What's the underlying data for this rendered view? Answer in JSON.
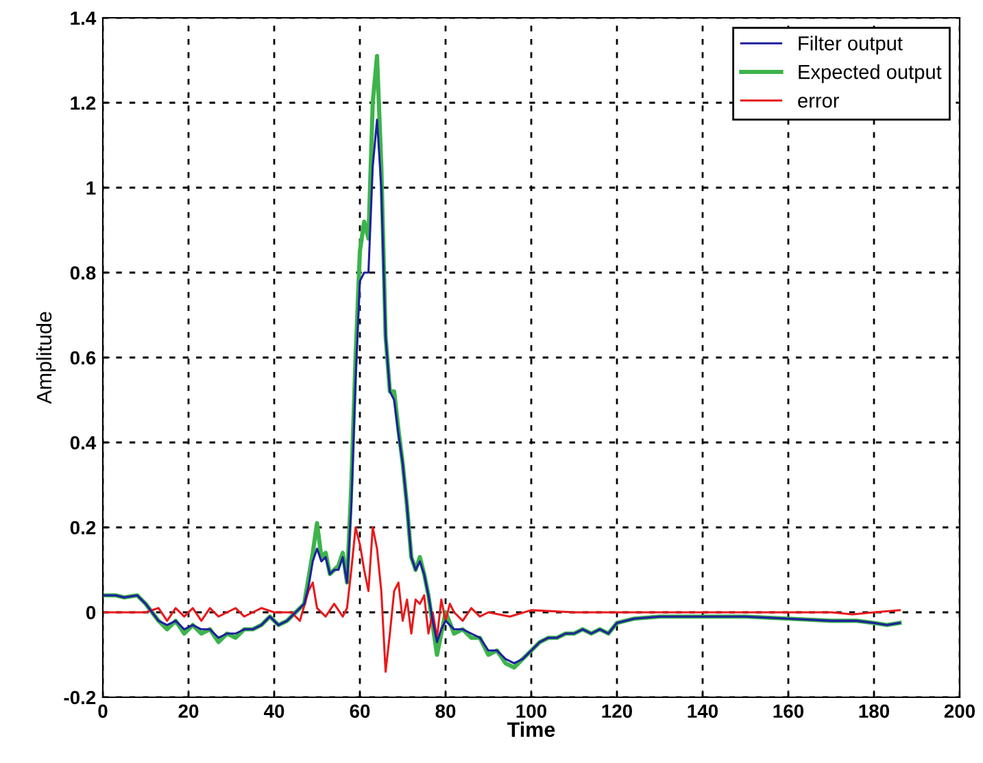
{
  "chart_data": {
    "type": "line",
    "xlabel": "Time",
    "ylabel": "Amplitude",
    "xlim": [
      0,
      200
    ],
    "ylim": [
      -0.2,
      1.4
    ],
    "xticks": [
      0,
      20,
      40,
      60,
      80,
      100,
      120,
      140,
      160,
      180,
      200
    ],
    "yticks": [
      -0.2,
      0,
      0.2,
      0.4,
      0.6,
      0.8,
      1,
      1.2,
      1.4
    ],
    "grid": true,
    "legend": "top right",
    "series": [
      {
        "name": "Filter output",
        "color": "#1f1f9e",
        "x": [
          0,
          3,
          5,
          8,
          10,
          13,
          15,
          17,
          19,
          21,
          23,
          25,
          27,
          29,
          31,
          33,
          35,
          37,
          39,
          41,
          43,
          45,
          46,
          47,
          48,
          49,
          50,
          51,
          52,
          53,
          54,
          55,
          56,
          57,
          58,
          59,
          60,
          61,
          62,
          63,
          64,
          65,
          66,
          67,
          68,
          69,
          70,
          71,
          72,
          73,
          74,
          75,
          76,
          77,
          78,
          79,
          80,
          82,
          84,
          86,
          88,
          90,
          92,
          94,
          96,
          98,
          100,
          102,
          104,
          106,
          108,
          110,
          112,
          114,
          116,
          118,
          120,
          124,
          130,
          140,
          150,
          160,
          170,
          176,
          180,
          183,
          186
        ],
        "values": [
          0.04,
          0.04,
          0.035,
          0.04,
          0.02,
          -0.02,
          -0.03,
          -0.02,
          -0.04,
          -0.03,
          -0.04,
          -0.04,
          -0.06,
          -0.05,
          -0.05,
          -0.04,
          -0.04,
          -0.03,
          -0.01,
          -0.03,
          -0.02,
          0.0,
          0.01,
          0.02,
          0.06,
          0.12,
          0.15,
          0.12,
          0.13,
          0.09,
          0.1,
          0.1,
          0.13,
          0.07,
          0.25,
          0.55,
          0.78,
          0.8,
          0.8,
          1.05,
          1.16,
          1.0,
          0.65,
          0.52,
          0.5,
          0.42,
          0.35,
          0.25,
          0.13,
          0.1,
          0.12,
          0.09,
          0.04,
          -0.02,
          -0.07,
          -0.04,
          -0.02,
          -0.04,
          -0.04,
          -0.05,
          -0.06,
          -0.09,
          -0.09,
          -0.11,
          -0.12,
          -0.11,
          -0.09,
          -0.07,
          -0.06,
          -0.06,
          -0.05,
          -0.05,
          -0.04,
          -0.05,
          -0.04,
          -0.05,
          -0.025,
          -0.015,
          -0.01,
          -0.01,
          -0.01,
          -0.015,
          -0.02,
          -0.02,
          -0.025,
          -0.03,
          -0.025
        ]
      },
      {
        "name": "Expected output",
        "color": "#3cb44b",
        "x": [
          0,
          3,
          5,
          8,
          10,
          13,
          15,
          17,
          19,
          21,
          23,
          25,
          27,
          29,
          31,
          33,
          35,
          37,
          39,
          41,
          43,
          45,
          46,
          47,
          48,
          49,
          50,
          51,
          52,
          53,
          54,
          55,
          56,
          57,
          58,
          59,
          60,
          61,
          62,
          63,
          64,
          65,
          66,
          67,
          68,
          69,
          70,
          71,
          72,
          73,
          74,
          75,
          76,
          77,
          78,
          79,
          80,
          82,
          84,
          86,
          88,
          90,
          92,
          94,
          96,
          98,
          100,
          102,
          104,
          106,
          108,
          110,
          112,
          114,
          116,
          118,
          120,
          124,
          130,
          140,
          150,
          160,
          170,
          176,
          180,
          183,
          186
        ],
        "values": [
          0.04,
          0.04,
          0.035,
          0.04,
          0.02,
          -0.02,
          -0.04,
          -0.02,
          -0.05,
          -0.03,
          -0.05,
          -0.04,
          -0.07,
          -0.05,
          -0.06,
          -0.04,
          -0.04,
          -0.03,
          -0.01,
          -0.03,
          -0.02,
          0.0,
          0.01,
          0.02,
          0.08,
          0.14,
          0.21,
          0.13,
          0.14,
          0.09,
          0.1,
          0.11,
          0.14,
          0.07,
          0.3,
          0.6,
          0.85,
          0.92,
          0.88,
          1.2,
          1.31,
          1.05,
          0.65,
          0.52,
          0.52,
          0.43,
          0.35,
          0.25,
          0.13,
          0.1,
          0.13,
          0.09,
          0.04,
          -0.03,
          -0.1,
          -0.05,
          0.0,
          -0.05,
          -0.04,
          -0.06,
          -0.06,
          -0.1,
          -0.09,
          -0.12,
          -0.13,
          -0.11,
          -0.09,
          -0.07,
          -0.06,
          -0.06,
          -0.05,
          -0.05,
          -0.04,
          -0.05,
          -0.04,
          -0.05,
          -0.025,
          -0.015,
          -0.01,
          -0.01,
          -0.01,
          -0.015,
          -0.02,
          -0.02,
          -0.025,
          -0.03,
          -0.025
        ]
      },
      {
        "name": "error",
        "color": "#e8191c",
        "x": [
          0,
          10,
          13,
          15,
          17,
          19,
          21,
          23,
          25,
          27,
          29,
          31,
          33,
          35,
          37,
          40,
          44,
          46,
          48,
          49,
          50,
          52,
          54,
          56,
          57,
          58,
          59,
          60,
          61,
          62,
          63,
          64,
          65,
          66,
          67,
          68,
          69,
          70,
          71,
          72,
          73,
          74,
          75,
          76,
          77,
          78,
          79,
          80,
          81,
          82,
          84,
          86,
          88,
          90,
          95,
          100,
          110,
          120,
          140,
          160,
          170,
          175,
          180,
          186
        ],
        "values": [
          0.0,
          0.0,
          0.01,
          -0.02,
          0.01,
          -0.01,
          0.01,
          -0.02,
          0.01,
          -0.01,
          0.0,
          0.01,
          -0.01,
          0.0,
          0.01,
          0.0,
          0.0,
          -0.02,
          0.05,
          0.07,
          0.01,
          -0.01,
          0.02,
          -0.01,
          0.01,
          0.1,
          0.2,
          0.16,
          0.1,
          0.05,
          0.2,
          0.15,
          0.05,
          -0.14,
          -0.05,
          0.05,
          0.07,
          -0.02,
          0.03,
          -0.05,
          0.03,
          0.02,
          0.04,
          -0.05,
          0.0,
          -0.06,
          0.03,
          -0.02,
          0.02,
          0.0,
          -0.02,
          0.01,
          -0.01,
          0.0,
          -0.01,
          0.005,
          0.0,
          0.0,
          0.0,
          0.0,
          0.0,
          -0.005,
          0.0,
          0.005
        ]
      }
    ]
  }
}
